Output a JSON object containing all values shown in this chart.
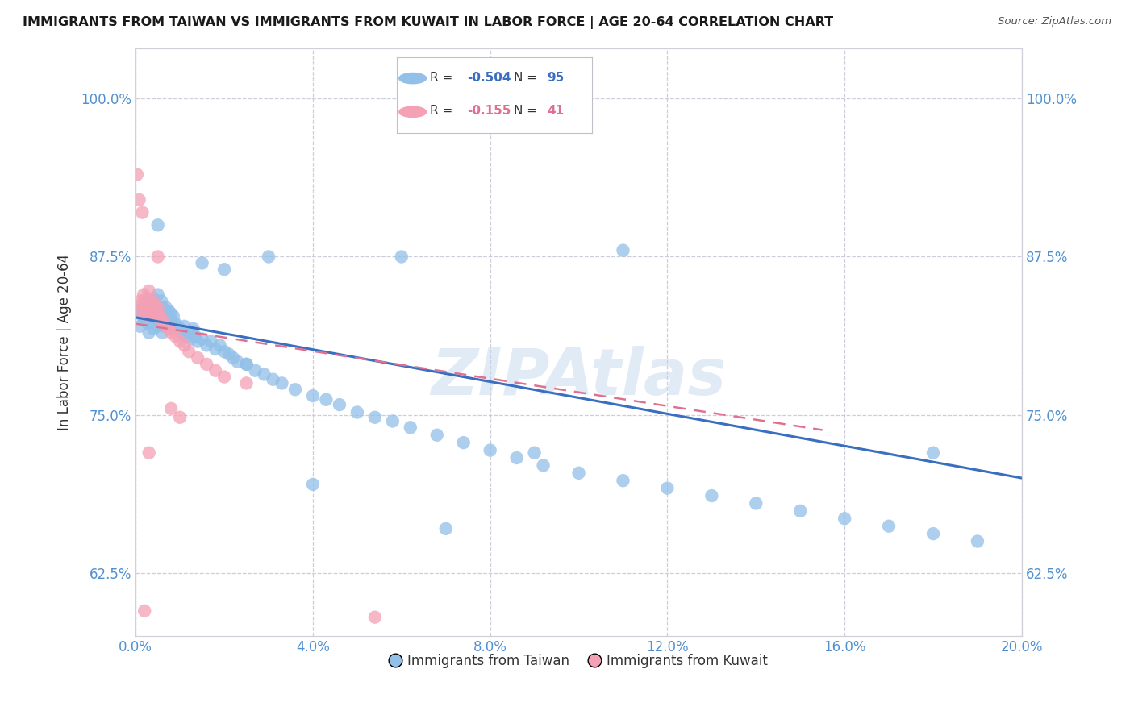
{
  "title": "IMMIGRANTS FROM TAIWAN VS IMMIGRANTS FROM KUWAIT IN LABOR FORCE | AGE 20-64 CORRELATION CHART",
  "source": "Source: ZipAtlas.com",
  "ylabel": "In Labor Force | Age 20-64",
  "xlim": [
    0.0,
    0.2
  ],
  "ylim": [
    0.575,
    1.04
  ],
  "yticks": [
    0.625,
    0.75,
    0.875,
    1.0
  ],
  "xticks": [
    0.0,
    0.04,
    0.08,
    0.12,
    0.16,
    0.2
  ],
  "taiwan_R": -0.504,
  "taiwan_N": 95,
  "kuwait_R": -0.155,
  "kuwait_N": 41,
  "taiwan_color": "#92C0E8",
  "kuwait_color": "#F4A0B5",
  "taiwan_line_color": "#3A6EC0",
  "kuwait_line_color": "#E07090",
  "taiwan_R_color": "#3A6EC0",
  "kuwait_R_color": "#E07090",
  "background_color": "#FFFFFF",
  "grid_color": "#C8C8D8",
  "watermark": "ZIPAtlas",
  "title_color": "#1a1a1a",
  "axis_color": "#5090D0",
  "taiwan_x": [
    0.001,
    0.0012,
    0.0015,
    0.0018,
    0.002,
    0.0022,
    0.0025,
    0.0028,
    0.003,
    0.003,
    0.0032,
    0.0035,
    0.0038,
    0.004,
    0.004,
    0.0042,
    0.0045,
    0.0048,
    0.005,
    0.005,
    0.0052,
    0.0055,
    0.0058,
    0.006,
    0.006,
    0.0062,
    0.0065,
    0.0068,
    0.007,
    0.0072,
    0.0075,
    0.0078,
    0.008,
    0.0082,
    0.0085,
    0.0088,
    0.009,
    0.0095,
    0.01,
    0.0105,
    0.011,
    0.0115,
    0.012,
    0.0125,
    0.013,
    0.0135,
    0.014,
    0.015,
    0.016,
    0.017,
    0.018,
    0.019,
    0.02,
    0.021,
    0.022,
    0.023,
    0.025,
    0.027,
    0.029,
    0.031,
    0.033,
    0.036,
    0.04,
    0.043,
    0.046,
    0.05,
    0.054,
    0.058,
    0.062,
    0.068,
    0.074,
    0.08,
    0.086,
    0.092,
    0.1,
    0.11,
    0.12,
    0.13,
    0.14,
    0.15,
    0.16,
    0.17,
    0.18,
    0.19,
    0.005,
    0.02,
    0.015,
    0.03,
    0.06,
    0.11,
    0.025,
    0.04,
    0.07,
    0.09,
    0.18
  ],
  "taiwan_y": [
    0.82,
    0.832,
    0.828,
    0.835,
    0.825,
    0.83,
    0.838,
    0.822,
    0.84,
    0.815,
    0.835,
    0.828,
    0.832,
    0.842,
    0.818,
    0.838,
    0.83,
    0.825,
    0.845,
    0.82,
    0.835,
    0.828,
    0.84,
    0.835,
    0.815,
    0.83,
    0.82,
    0.835,
    0.828,
    0.822,
    0.832,
    0.825,
    0.83,
    0.82,
    0.828,
    0.818,
    0.822,
    0.82,
    0.818,
    0.815,
    0.82,
    0.812,
    0.815,
    0.81,
    0.818,
    0.812,
    0.808,
    0.81,
    0.805,
    0.808,
    0.802,
    0.805,
    0.8,
    0.798,
    0.795,
    0.792,
    0.79,
    0.785,
    0.782,
    0.778,
    0.775,
    0.77,
    0.765,
    0.762,
    0.758,
    0.752,
    0.748,
    0.745,
    0.74,
    0.734,
    0.728,
    0.722,
    0.716,
    0.71,
    0.704,
    0.698,
    0.692,
    0.686,
    0.68,
    0.674,
    0.668,
    0.662,
    0.656,
    0.65,
    0.9,
    0.865,
    0.87,
    0.875,
    0.875,
    0.88,
    0.79,
    0.695,
    0.66,
    0.72,
    0.72
  ],
  "kuwait_x": [
    0.001,
    0.0012,
    0.0015,
    0.0018,
    0.002,
    0.0022,
    0.0025,
    0.0028,
    0.003,
    0.0032,
    0.0035,
    0.0038,
    0.004,
    0.0042,
    0.0045,
    0.0048,
    0.005,
    0.0055,
    0.006,
    0.0065,
    0.007,
    0.0075,
    0.008,
    0.009,
    0.01,
    0.011,
    0.012,
    0.014,
    0.016,
    0.018,
    0.02,
    0.025,
    0.054,
    0.0003,
    0.0008,
    0.0015,
    0.005,
    0.01,
    0.003,
    0.008,
    0.002
  ],
  "kuwait_y": [
    0.84,
    0.832,
    0.838,
    0.845,
    0.83,
    0.835,
    0.842,
    0.828,
    0.848,
    0.835,
    0.838,
    0.832,
    0.84,
    0.835,
    0.828,
    0.832,
    0.835,
    0.828,
    0.825,
    0.822,
    0.82,
    0.818,
    0.815,
    0.812,
    0.808,
    0.805,
    0.8,
    0.795,
    0.79,
    0.785,
    0.78,
    0.775,
    0.59,
    0.94,
    0.92,
    0.91,
    0.875,
    0.748,
    0.72,
    0.755,
    0.595
  ]
}
